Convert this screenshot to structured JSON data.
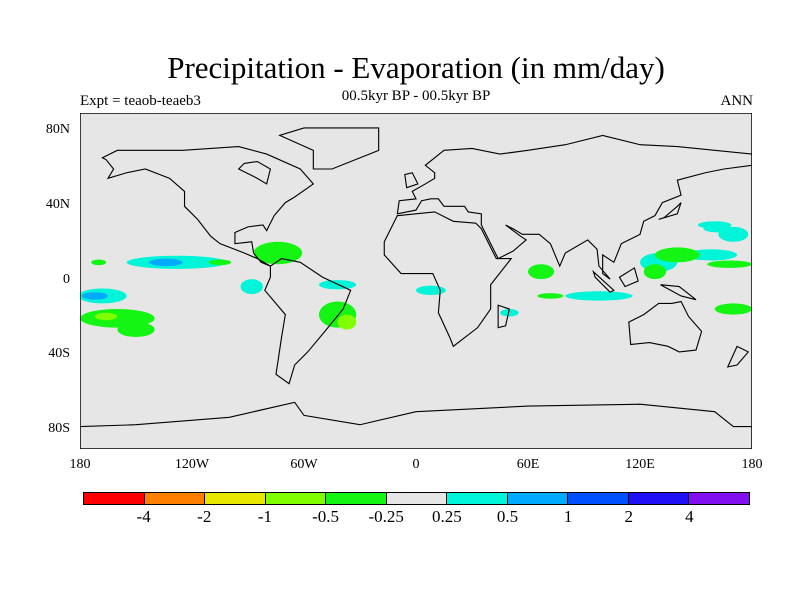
{
  "title": "Precipitation - Evaporation (in mm/day)",
  "subtitle": "00.5kyr BP - 00.5kyr BP",
  "left_string": "Expt = teaob-teaeb3",
  "right_string": "ANN",
  "map": {
    "projection": "cylindrical equidistant",
    "background_color": "#e6e6e6",
    "lat_labels": [
      "80N",
      "40N",
      "0",
      "40S",
      "80S"
    ],
    "lon_labels": [
      "180",
      "120W",
      "60W",
      "0",
      "60E",
      "120E",
      "180"
    ]
  },
  "colorbar": {
    "labels": [
      "-4",
      "-2",
      "-1",
      "-0.5",
      "-0.25",
      "0.25",
      "0.5",
      "1",
      "2",
      "4"
    ],
    "colors": [
      "#ff0000",
      "#ff8000",
      "#e6e600",
      "#80ff00",
      "#14f514",
      "#e6e6e6",
      "#00f5d8",
      "#00aaff",
      "#0050ff",
      "#2010f5",
      "#8010f0"
    ]
  }
}
